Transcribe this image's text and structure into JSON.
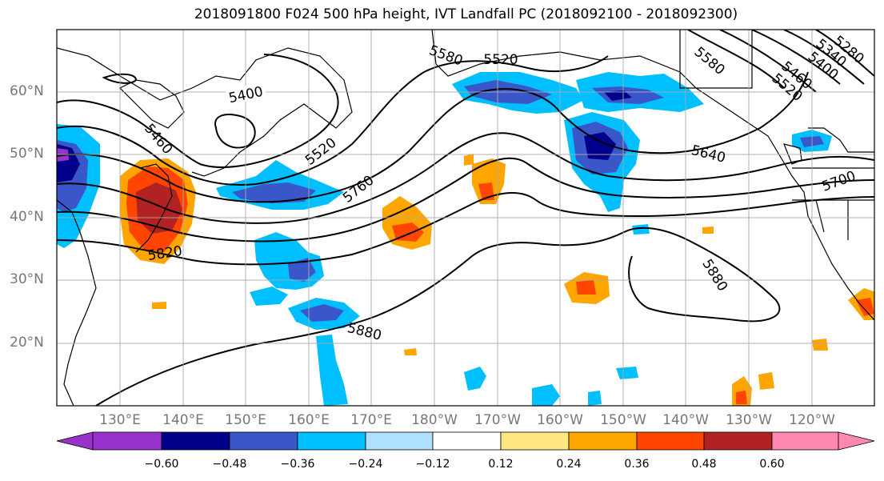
{
  "title": "2018091800 F024 500 hPa height, IVT Landfall PC (2018092100 - 2018092300)",
  "lat_labels": [
    "60°N",
    "50°N",
    "40°N",
    "30°N",
    "20°N"
  ],
  "lon_labels": [
    "130°E",
    "140°E",
    "150°E",
    "160°E",
    "170°E",
    "180°W",
    "170°W",
    "160°W",
    "150°W",
    "140°W",
    "130°W",
    "120°W"
  ],
  "contour_labels": [
    "5400",
    "5460",
    "5520",
    "5580",
    "5520",
    "5760",
    "5820",
    "5880",
    "5580",
    "5640",
    "5700",
    "5880",
    "5520",
    "5460",
    "5400",
    "5340",
    "5280"
  ],
  "colorbar": {
    "ticks": [
      "−0.60",
      "−0.48",
      "−0.36",
      "−0.24",
      "−0.12",
      "0.12",
      "0.24",
      "0.36",
      "0.48",
      "0.60"
    ],
    "colors": [
      "#9932cc",
      "#00008b",
      "#3a57c9",
      "#00bfff",
      "#b0e0ff",
      "#ffffff",
      "#ffe680",
      "#ffa500",
      "#ff4500",
      "#b22222",
      "#ff88b0"
    ]
  }
}
